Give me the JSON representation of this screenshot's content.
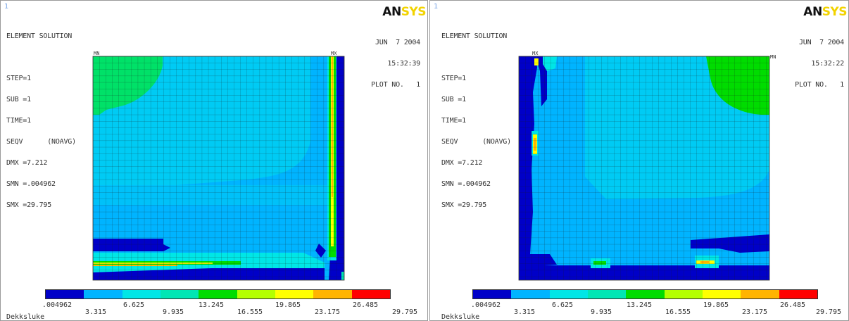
{
  "colors": [
    "#0000c8",
    "#00b4ff",
    "#00e6e6",
    "#00e6b4",
    "#00dc00",
    "#b4ff00",
    "#ffff00",
    "#ffb400",
    "#ff0000"
  ],
  "logo": {
    "an": "AN",
    "sys": "SYS"
  },
  "legend": {
    "values": [
      ".004962",
      "3.315",
      "6.625",
      "9.935",
      "13.245",
      "16.555",
      "19.865",
      "23.175",
      "26.485",
      "29.795"
    ]
  },
  "left": {
    "window_number": "1",
    "info": [
      "ELEMENT SOLUTION",
      "",
      "STEP=1",
      "SUB =1",
      "TIME=1",
      "SEQV      (NOAVG)",
      "DMX =7.212",
      "SMN =.004962",
      "SMX =29.795"
    ],
    "date": "JUN  7 2004",
    "time": "15:32:39",
    "plot": "PLOT NO.   1",
    "mn_label": "MN",
    "mx_label": "MX",
    "footer": "Dekksluke"
  },
  "right": {
    "window_number": "1",
    "info": [
      "ELEMENT SOLUTION",
      "",
      "STEP=1",
      "SUB =1",
      "TIME=1",
      "SEQV      (NOAVG)",
      "DMX =7.212",
      "SMN =.004962",
      "SMX =29.795"
    ],
    "date": "JUN  7 2004",
    "time": "15:32:22",
    "plot": "PLOT NO.   1",
    "mn_label": "MN",
    "mx_label": "MX",
    "footer": "Dekksluke"
  }
}
